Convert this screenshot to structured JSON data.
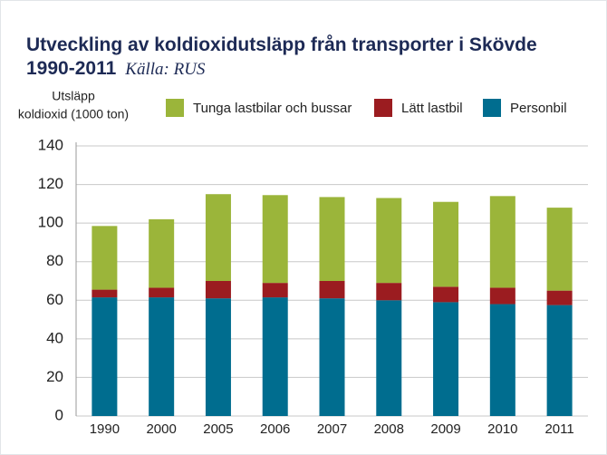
{
  "chart_data": {
    "type": "bar",
    "stacked": true,
    "title": "Utveckling av koldioxidutsläpp från transporter i Skövde 1990-2011",
    "source": "Källa: RUS",
    "ylabel": [
      "Utsläpp",
      "koldioxid (1000 ton)"
    ],
    "categories": [
      "1990",
      "2000",
      "2005",
      "2006",
      "2007",
      "2008",
      "2009",
      "2010",
      "2011"
    ],
    "series": [
      {
        "name": "Personbil",
        "color": "#006d8f",
        "values": [
          61.5,
          61.5,
          61,
          61.5,
          61,
          60,
          59,
          58,
          57.5
        ]
      },
      {
        "name": "Lätt lastbil",
        "color": "#9b1c20",
        "values": [
          4,
          5,
          9,
          7.5,
          9,
          9,
          8,
          8.5,
          7.5
        ]
      },
      {
        "name": "Tunga lastbilar och bussar",
        "color": "#9bb53a",
        "values": [
          33,
          35.5,
          45,
          45.5,
          43.5,
          44,
          44,
          47.5,
          43
        ]
      }
    ],
    "ylim": [
      0,
      140
    ],
    "yticks": [
      0,
      20,
      40,
      60,
      80,
      100,
      120,
      140
    ],
    "grid": true
  }
}
